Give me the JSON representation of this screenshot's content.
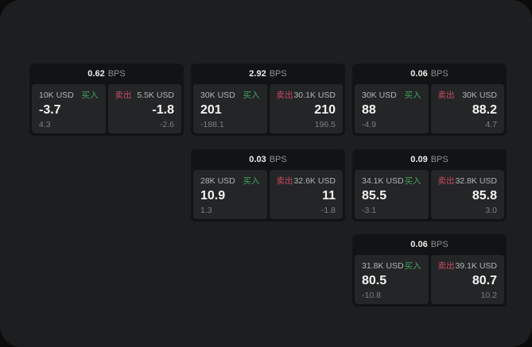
{
  "labels": {
    "bps": "BPS",
    "buy": "买入",
    "sell": "卖出"
  },
  "colors": {
    "frame_bg": "#1d1e1f",
    "card_bg": "#121314",
    "panel_bg": "#242526",
    "buy_green": "#3fa55e",
    "sell_red": "#c84b64"
  },
  "cards": [
    {
      "bps": "0.62",
      "buy": {
        "amount": "10K USD",
        "price": "-3.7",
        "sub": "4.3"
      },
      "sell": {
        "amount": "5.5K USD",
        "price": "-1.8",
        "sub": "-2.6"
      }
    },
    {
      "bps": "2.92",
      "buy": {
        "amount": "30K USD",
        "price": "201",
        "sub": "-188.1"
      },
      "sell": {
        "amount": "30.1K USD",
        "price": "210",
        "sub": "196.5"
      }
    },
    {
      "bps": "0.06",
      "buy": {
        "amount": "30K USD",
        "price": "88",
        "sub": "-4.9"
      },
      "sell": {
        "amount": "30K USD",
        "price": "88.2",
        "sub": "4.7"
      }
    },
    {
      "bps": "0.03",
      "buy": {
        "amount": "28K USD",
        "price": "10.9",
        "sub": "1.3"
      },
      "sell": {
        "amount": "32.6K USD",
        "price": "11",
        "sub": "-1.8"
      }
    },
    {
      "bps": "0.09",
      "buy": {
        "amount": "34.1K USD",
        "price": "85.5",
        "sub": "-3.1"
      },
      "sell": {
        "amount": "32.8K USD",
        "price": "85.8",
        "sub": "3.0"
      }
    },
    {
      "bps": "0.06",
      "buy": {
        "amount": "31.8K USD",
        "price": "80.5",
        "sub": "-10.8"
      },
      "sell": {
        "amount": "39.1K USD",
        "price": "80.7",
        "sub": "10.2"
      }
    }
  ]
}
